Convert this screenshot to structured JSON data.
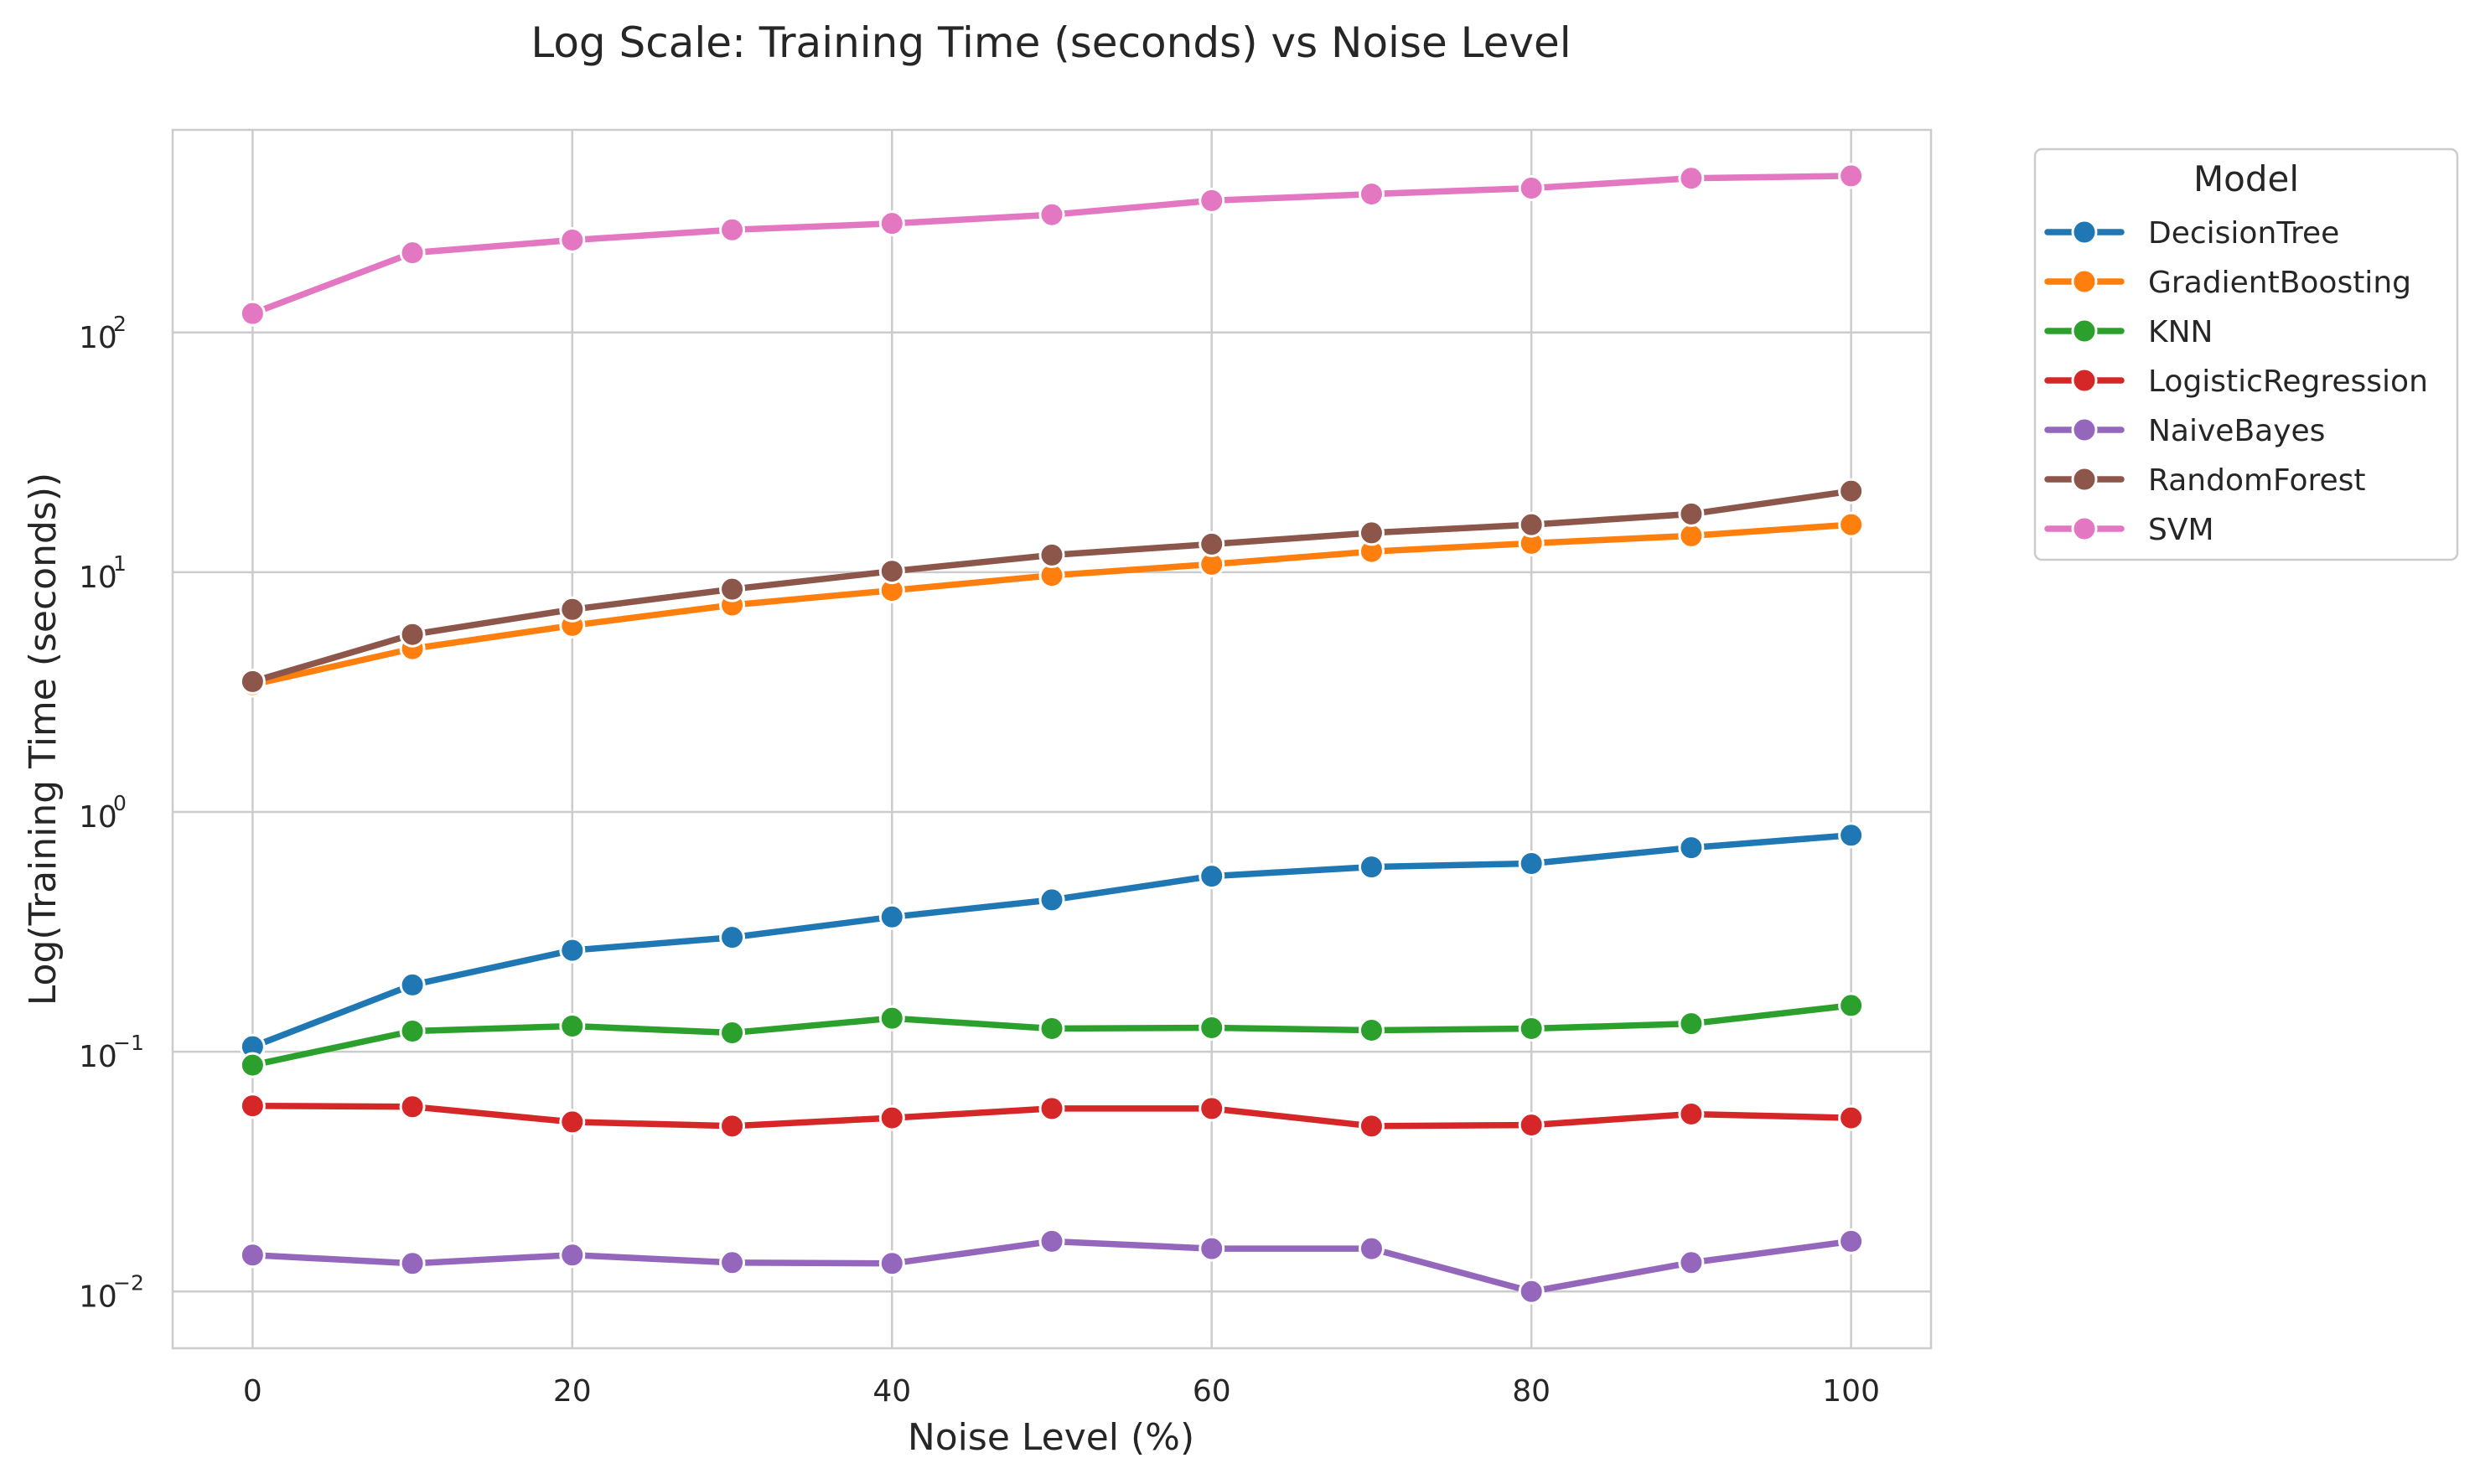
{
  "chart_data": {
    "type": "line",
    "title": "Log Scale: Training Time (seconds) vs Noise Level",
    "xlabel": "Noise Level (%)",
    "ylabel": "Log(Training Time (seconds))",
    "yscale": "log",
    "xlim": [
      -5,
      105
    ],
    "ylim": [
      0.0058,
      700
    ],
    "x_ticks": [
      0,
      20,
      40,
      60,
      80,
      100
    ],
    "x_tick_labels": [
      "0",
      "20",
      "40",
      "60",
      "80",
      "100"
    ],
    "y_ticks": [
      {
        "base": "10",
        "exp": "−2",
        "value": 0.01
      },
      {
        "base": "10",
        "exp": "−1",
        "value": 0.1
      },
      {
        "base": "10",
        "exp": "0",
        "value": 1
      },
      {
        "base": "10",
        "exp": "1",
        "value": 10
      },
      {
        "base": "10",
        "exp": "2",
        "value": 100
      }
    ],
    "grid": true,
    "legend_title": "Model",
    "legend_position": "outside upper right",
    "x": [
      0,
      10,
      20,
      30,
      40,
      50,
      60,
      70,
      80,
      90,
      100
    ],
    "series": [
      {
        "name": "DecisionTree",
        "color": "#1f77b4",
        "values": [
          0.105,
          0.19,
          0.265,
          0.3,
          0.365,
          0.43,
          0.54,
          0.59,
          0.61,
          0.71,
          0.8
        ]
      },
      {
        "name": "GradientBoosting",
        "color": "#ff7f0e",
        "values": [
          3.4,
          4.8,
          6.0,
          7.3,
          8.4,
          9.7,
          10.8,
          12.2,
          13.2,
          14.2,
          15.8
        ]
      },
      {
        "name": "KNN",
        "color": "#2ca02c",
        "values": [
          0.088,
          0.122,
          0.128,
          0.12,
          0.138,
          0.125,
          0.126,
          0.123,
          0.125,
          0.131,
          0.156
        ]
      },
      {
        "name": "LogisticRegression",
        "color": "#d62728",
        "values": [
          0.0595,
          0.059,
          0.051,
          0.049,
          0.053,
          0.058,
          0.058,
          0.049,
          0.0495,
          0.055,
          0.053
        ]
      },
      {
        "name": "NaiveBayes",
        "color": "#9467bd",
        "values": [
          0.0142,
          0.0131,
          0.0142,
          0.0132,
          0.0131,
          0.0162,
          0.0151,
          0.0151,
          0.01,
          0.0132,
          0.0162
        ]
      },
      {
        "name": "RandomForest",
        "color": "#8c564b",
        "values": [
          3.5,
          5.5,
          7.0,
          8.5,
          10.1,
          11.8,
          13.1,
          14.6,
          15.8,
          17.5,
          21.8
        ]
      },
      {
        "name": "SVM",
        "color": "#e377c2",
        "values": [
          120,
          215,
          243,
          268,
          285,
          310,
          355,
          378,
          400,
          440,
          450
        ]
      }
    ]
  }
}
